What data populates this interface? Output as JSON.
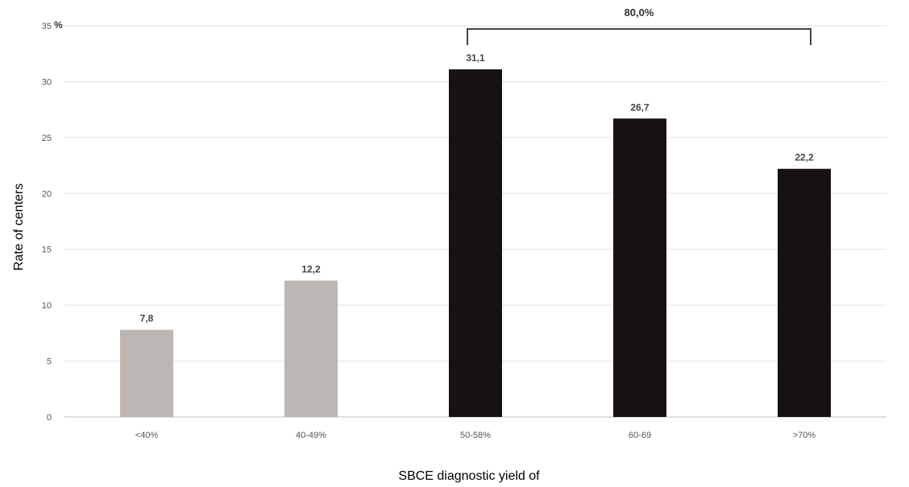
{
  "chart_data": {
    "type": "bar",
    "categories": [
      "<40%",
      "40-49%",
      "50-58%",
      "60-69",
      ">70%"
    ],
    "values": [
      7.8,
      12.2,
      31.1,
      26.7,
      22.2
    ],
    "value_labels": [
      "7,8",
      "12,2",
      "31,1",
      "26,7",
      "22,2"
    ],
    "bar_colors": [
      "#bdb7b4",
      "#bdb7b4",
      "#161212",
      "#161212",
      "#161212"
    ],
    "title": "",
    "xlabel": "SBCE diagnostic yield of",
    "ylabel": "Rate of centers",
    "y_unit": "%",
    "ylim": [
      0,
      35
    ],
    "yticks": [
      0,
      5,
      10,
      15,
      20,
      25,
      30,
      35
    ],
    "grid": true,
    "legend": "none",
    "annotation": {
      "text": "80,0%",
      "spans_categories": [
        "50-58%",
        ">70%"
      ]
    }
  }
}
